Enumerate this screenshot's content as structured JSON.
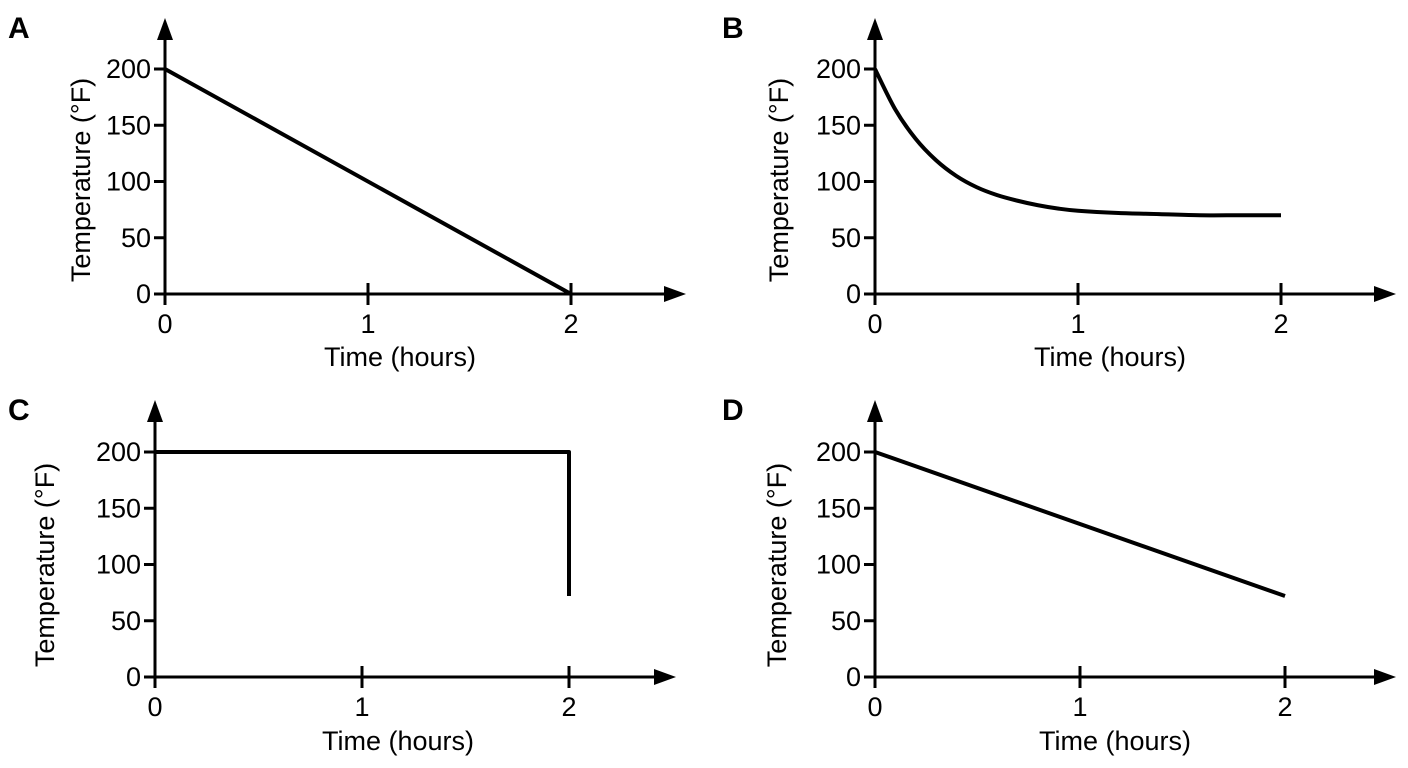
{
  "chart_data": [
    {
      "type": "line",
      "panel": "A",
      "xlabel": "Time (hours)",
      "ylabel": "Temperature (°F)",
      "xticks": [
        0,
        1,
        2
      ],
      "yticks": [
        0,
        50,
        100,
        150,
        200
      ],
      "xlim": [
        0,
        2.5
      ],
      "ylim": [
        0,
        240
      ],
      "grid": false,
      "series": [
        {
          "x": [
            0,
            2
          ],
          "y": [
            200,
            0
          ]
        }
      ]
    },
    {
      "type": "line",
      "panel": "B",
      "xlabel": "Time (hours)",
      "ylabel": "Temperature (°F)",
      "xticks": [
        0,
        1,
        2
      ],
      "yticks": [
        0,
        50,
        100,
        150,
        200
      ],
      "xlim": [
        0,
        2.5
      ],
      "ylim": [
        0,
        240
      ],
      "grid": false,
      "series": [
        {
          "x": [
            0,
            0.1,
            0.2,
            0.3,
            0.4,
            0.5,
            0.6,
            0.7,
            0.8,
            0.9,
            1.0,
            1.2,
            1.4,
            1.6,
            1.8,
            2.0
          ],
          "y": [
            200,
            164,
            138,
            119,
            105,
            95,
            88,
            83,
            79,
            76,
            74,
            72,
            71,
            70,
            70,
            70
          ]
        }
      ]
    },
    {
      "type": "line",
      "panel": "C",
      "xlabel": "Time (hours)",
      "ylabel": "Temperature (°F)",
      "xticks": [
        0,
        1,
        2
      ],
      "yticks": [
        0,
        50,
        100,
        150,
        200
      ],
      "xlim": [
        0,
        2.5
      ],
      "ylim": [
        0,
        240
      ],
      "grid": false,
      "series": [
        {
          "x": [
            0,
            2,
            2
          ],
          "y": [
            200,
            200,
            72
          ]
        }
      ]
    },
    {
      "type": "line",
      "panel": "D",
      "xlabel": "Time (hours)",
      "ylabel": "Temperature (°F)",
      "xticks": [
        0,
        1,
        2
      ],
      "yticks": [
        0,
        50,
        100,
        150,
        200
      ],
      "xlim": [
        0,
        2.5
      ],
      "ylim": [
        0,
        240
      ],
      "grid": false,
      "series": [
        {
          "x": [
            0,
            2
          ],
          "y": [
            200,
            72
          ]
        }
      ]
    }
  ]
}
